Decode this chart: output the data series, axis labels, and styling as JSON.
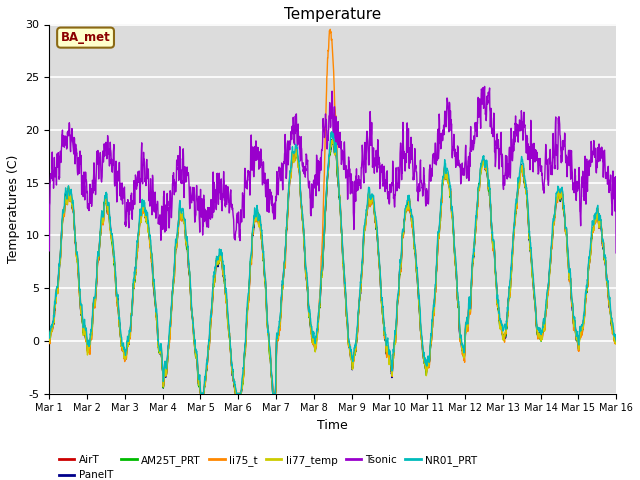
{
  "title": "Temperature",
  "xlabel": "Time",
  "ylabel": "Temperatures (C)",
  "ylim": [
    -5,
    30
  ],
  "annotation_text": "BA_met",
  "background_color": "#dcdcdc",
  "grid_color": "white",
  "series_order": [
    "AirT",
    "PanelT",
    "AM25T_PRT",
    "li75_t",
    "li77_temp",
    "Tsonic",
    "NR01_PRT"
  ],
  "colors": {
    "AirT": "#cc0000",
    "PanelT": "#00008b",
    "AM25T_PRT": "#00bb00",
    "li75_t": "#ff8800",
    "li77_temp": "#cccc00",
    "Tsonic": "#9900cc",
    "NR01_PRT": "#00bbbb"
  },
  "lw": 1.0,
  "xtick_labels": [
    "Mar 1",
    "Mar 2",
    "Mar 3",
    "Mar 4",
    "Mar 5",
    "Mar 6",
    "Mar 7",
    "Mar 8",
    "Mar 9",
    "Mar 10",
    "Mar 11",
    "Mar 12",
    "Mar 13",
    "Mar 14",
    "Mar 15",
    "Mar 16"
  ],
  "ytick_labels": [
    -5,
    0,
    5,
    10,
    15,
    20,
    25,
    30
  ],
  "figsize": [
    6.4,
    4.8
  ],
  "dpi": 100
}
